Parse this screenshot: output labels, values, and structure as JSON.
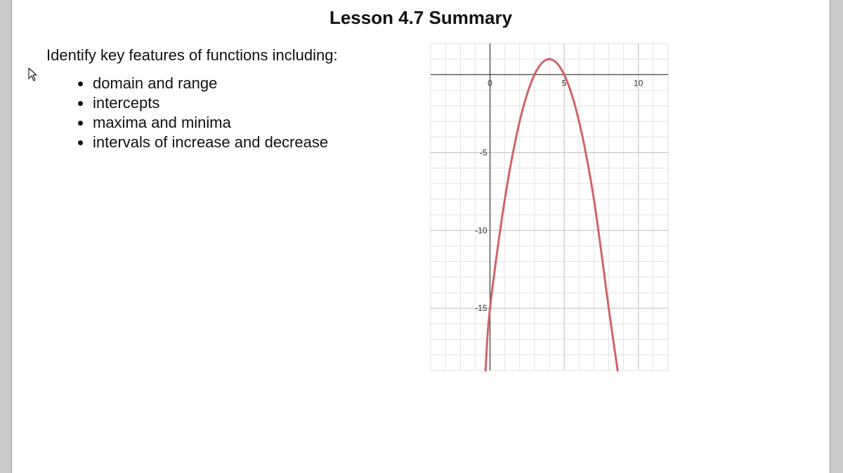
{
  "slide": {
    "title": "Lesson 4.7 Summary",
    "intro": "Identify key features of functions including:",
    "bullets": [
      "domain and range",
      "intercepts",
      "maxima and minima",
      "intervals of increase and decrease"
    ]
  },
  "icons": {
    "cursor": "mouse-pointer-icon"
  },
  "chart_data": {
    "type": "line",
    "title": "",
    "xlabel": "",
    "ylabel": "",
    "xlim": [
      -4,
      12
    ],
    "ylim": [
      -19,
      2
    ],
    "grid": true,
    "x_ticks": [
      "0",
      "5",
      "10"
    ],
    "y_ticks": [
      "-5",
      "-10",
      "-15"
    ],
    "curve_color": "#d06464",
    "series": [
      {
        "x": [
          -0.3,
          0,
          1,
          2,
          3,
          4,
          5,
          6,
          7,
          8,
          8.6
        ],
        "y": [
          -19,
          -15,
          -8,
          -3,
          0,
          1,
          0,
          -3,
          -8,
          -15,
          -19
        ]
      }
    ]
  }
}
